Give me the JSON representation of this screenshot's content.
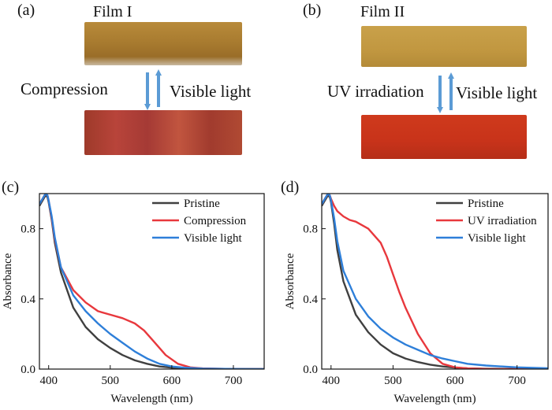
{
  "panels": {
    "a": {
      "label": "(a)",
      "film_title": "Film I",
      "forward": "Compression",
      "reverse": "Visible light"
    },
    "b": {
      "label": "(b)",
      "film_title": "Film II",
      "forward": "UV irradiation",
      "reverse": "Visible light"
    },
    "c": {
      "label": "(c)"
    },
    "d": {
      "label": "(d)"
    }
  },
  "colors": {
    "pristine": "#404040",
    "treated": "#e8383d",
    "visible": "#2e7fd9",
    "arrow": "#5b9bd5"
  },
  "chart_data": [
    {
      "type": "line",
      "panel": "c",
      "xlabel": "Wavelength (nm)",
      "ylabel": "Absorbance",
      "xlim": [
        385,
        750
      ],
      "ylim": [
        0,
        1.0
      ],
      "xticks": [
        400,
        500,
        600,
        700
      ],
      "yticks": [
        0.0,
        0.4,
        0.8
      ],
      "legend_position": "top-right",
      "series": [
        {
          "name": "Pristine",
          "color": "#404040",
          "x": [
            385,
            390,
            395,
            398,
            400,
            405,
            410,
            420,
            440,
            460,
            480,
            500,
            520,
            540,
            560,
            580,
            600,
            620,
            650,
            700,
            750
          ],
          "y": [
            0.93,
            0.96,
            0.99,
            0.98,
            0.95,
            0.85,
            0.72,
            0.55,
            0.35,
            0.24,
            0.17,
            0.12,
            0.08,
            0.05,
            0.03,
            0.015,
            0.008,
            0.004,
            0.002,
            0.001,
            0.0
          ]
        },
        {
          "name": "Compression",
          "color": "#e8383d",
          "x": [
            385,
            390,
            395,
            398,
            400,
            405,
            410,
            420,
            440,
            460,
            480,
            500,
            520,
            540,
            555,
            570,
            590,
            610,
            630,
            650,
            700,
            750
          ],
          "y": [
            0.94,
            0.97,
            1.0,
            0.99,
            0.96,
            0.86,
            0.74,
            0.58,
            0.45,
            0.38,
            0.33,
            0.31,
            0.29,
            0.26,
            0.22,
            0.16,
            0.08,
            0.03,
            0.01,
            0.004,
            0.0,
            0.0
          ]
        },
        {
          "name": "Visible light",
          "color": "#2e7fd9",
          "x": [
            385,
            390,
            395,
            398,
            400,
            405,
            410,
            420,
            440,
            460,
            480,
            500,
            520,
            540,
            560,
            580,
            600,
            620,
            650,
            700,
            750
          ],
          "y": [
            0.94,
            0.97,
            1.0,
            0.99,
            0.96,
            0.87,
            0.75,
            0.58,
            0.42,
            0.33,
            0.26,
            0.2,
            0.15,
            0.1,
            0.06,
            0.03,
            0.015,
            0.008,
            0.003,
            0.001,
            0.0
          ]
        }
      ]
    },
    {
      "type": "line",
      "panel": "d",
      "xlabel": "Wavelength (nm)",
      "ylabel": "Absorbance",
      "xlim": [
        385,
        750
      ],
      "ylim": [
        0,
        1.0
      ],
      "xticks": [
        400,
        500,
        600,
        700
      ],
      "yticks": [
        0.0,
        0.4,
        0.8
      ],
      "legend_position": "top-right",
      "series": [
        {
          "name": "Pristine",
          "color": "#404040",
          "x": [
            385,
            390,
            395,
            398,
            400,
            405,
            410,
            420,
            440,
            460,
            480,
            500,
            520,
            540,
            560,
            580,
            600,
            620,
            650,
            700,
            750
          ],
          "y": [
            0.93,
            0.96,
            0.99,
            0.98,
            0.95,
            0.83,
            0.68,
            0.5,
            0.31,
            0.21,
            0.14,
            0.09,
            0.06,
            0.04,
            0.025,
            0.015,
            0.008,
            0.004,
            0.002,
            0.001,
            0.0
          ]
        },
        {
          "name": "UV irradiation",
          "color": "#e8383d",
          "x": [
            385,
            390,
            395,
            398,
            400,
            405,
            410,
            420,
            430,
            440,
            460,
            480,
            490,
            500,
            510,
            520,
            540,
            560,
            580,
            600,
            620,
            650,
            700,
            750
          ],
          "y": [
            0.94,
            0.97,
            1.0,
            0.99,
            0.97,
            0.93,
            0.9,
            0.87,
            0.85,
            0.84,
            0.8,
            0.72,
            0.64,
            0.54,
            0.44,
            0.35,
            0.2,
            0.09,
            0.03,
            0.01,
            0.004,
            0.001,
            0.0,
            0.0
          ]
        },
        {
          "name": "Visible light",
          "color": "#2e7fd9",
          "x": [
            385,
            390,
            395,
            398,
            400,
            405,
            410,
            420,
            440,
            460,
            480,
            500,
            520,
            540,
            560,
            580,
            600,
            620,
            650,
            700,
            750
          ],
          "y": [
            0.94,
            0.97,
            1.0,
            0.99,
            0.96,
            0.86,
            0.73,
            0.56,
            0.4,
            0.3,
            0.23,
            0.18,
            0.14,
            0.11,
            0.08,
            0.06,
            0.045,
            0.03,
            0.02,
            0.01,
            0.005
          ]
        }
      ]
    }
  ]
}
